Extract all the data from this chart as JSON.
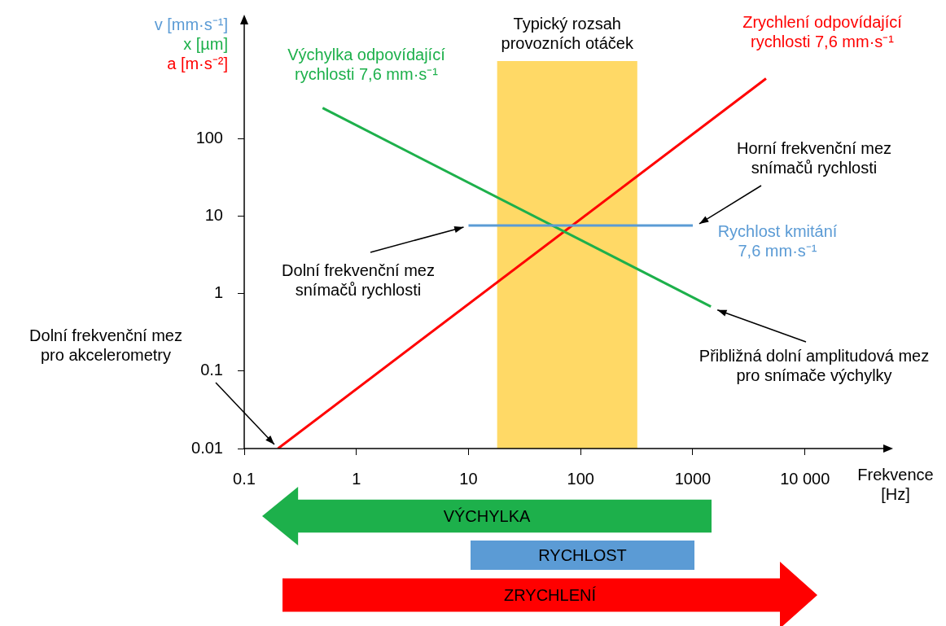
{
  "chart_data": {
    "type": "line",
    "log": "xy",
    "xlabel": "Frekvence [Hz]",
    "ylabel": "v [mm·s⁻¹]\nx [µm]\na [m·s⁻²]",
    "xlim": [
      0.1,
      50000
    ],
    "ylim": [
      0.01,
      3000
    ],
    "xticks": [
      0.1,
      1,
      10,
      100,
      1000,
      {
        "value": 10000,
        "label": "10 000"
      }
    ],
    "yticks": [
      0.01,
      0.1,
      1,
      10,
      100
    ],
    "series": [
      {
        "name": "Rychlost kmitání 7,6 mm·s⁻¹",
        "color": "#5b9bd5",
        "x": [
          10,
          1000
        ],
        "values": [
          7.6,
          7.6
        ]
      },
      {
        "name": "Výchylka odpovídající rychlosti 7,6 mm·s⁻¹",
        "color": "#1db04b",
        "x": [
          0.5,
          1450
        ],
        "values": [
          250,
          0.68
        ]
      },
      {
        "name": "Zrychlení odpovídající rychlosti 7,6 mm·s⁻¹",
        "color": "#ff0000",
        "x": [
          0.2,
          4500
        ],
        "values": [
          0.01,
          600
        ]
      }
    ],
    "bands": [
      {
        "axis": "x",
        "from": 18,
        "to": 320,
        "label": "Typický rozsah provozních otáček",
        "color": "#ffd966"
      }
    ],
    "annotations": [
      "Dolní frekvenční mez pro akcelerometry",
      {
        "text": "Dolní frekvenční mez snímačů rychlosti",
        "x": 10,
        "y": 7.6
      },
      {
        "text": "Horní frekvenční mez snímačů rychlosti",
        "x": 1000,
        "y": 7.6
      },
      {
        "text": "Přibližná dolní amplitudová mez pro snímače výchylky",
        "x": 1450,
        "y": 0.68
      },
      "VÝCHYLKA",
      "RYCHLOST",
      "ZRYCHLENÍ"
    ]
  }
}
